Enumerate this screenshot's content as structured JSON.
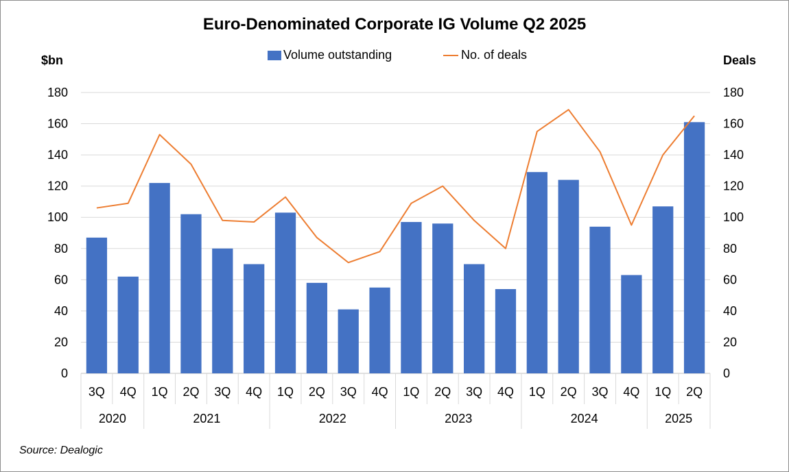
{
  "chart_data": {
    "type": "bar+line",
    "title": "Euro-Denominated Corporate IG Volume Q2 2025",
    "left_axis_label": "$bn",
    "right_axis_label": "Deals",
    "ylim": [
      0,
      180
    ],
    "y_ticks": [
      0,
      20,
      40,
      60,
      80,
      100,
      120,
      140,
      160,
      180
    ],
    "y2lim": [
      0,
      180
    ],
    "y2_ticks": [
      0,
      20,
      40,
      60,
      80,
      100,
      120,
      140,
      160,
      180
    ],
    "categories": [
      "3Q",
      "4Q",
      "1Q",
      "2Q",
      "3Q",
      "4Q",
      "1Q",
      "2Q",
      "3Q",
      "4Q",
      "1Q",
      "2Q",
      "3Q",
      "4Q",
      "1Q",
      "2Q",
      "3Q",
      "4Q",
      "1Q",
      "2Q"
    ],
    "year_groups": [
      {
        "label": "2020",
        "count": 2
      },
      {
        "label": "2021",
        "count": 4
      },
      {
        "label": "2022",
        "count": 4
      },
      {
        "label": "2023",
        "count": 4
      },
      {
        "label": "2024",
        "count": 4
      },
      {
        "label": "2025",
        "count": 2
      }
    ],
    "series": [
      {
        "name": "Volume outstanding",
        "type": "bar",
        "axis": "left",
        "color": "#4472C4",
        "values": [
          87,
          62,
          122,
          102,
          80,
          70,
          103,
          58,
          41,
          55,
          97,
          96,
          70,
          54,
          129,
          124,
          94,
          63,
          107,
          161
        ]
      },
      {
        "name": "No. of deals",
        "type": "line",
        "axis": "right",
        "color": "#ED7D31",
        "values": [
          106,
          109,
          153,
          134,
          98,
          97,
          113,
          87,
          71,
          78,
          109,
          120,
          98,
          80,
          155,
          169,
          142,
          95,
          140,
          165
        ]
      }
    ],
    "grid": true,
    "legend_position": "top-center"
  },
  "source": "Source: Dealogic"
}
